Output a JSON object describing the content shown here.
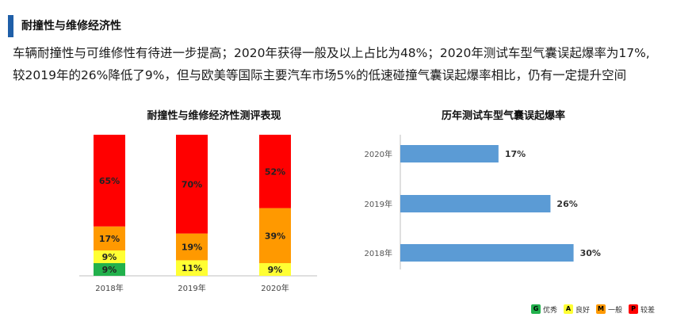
{
  "section": {
    "title": "耐撞性与维修经济性"
  },
  "summary": {
    "line1": "车辆耐撞性与可维修性有待进一步提高；2020年获得一般及以上占比为48%；2020年测试车型气囊误起爆率为17%,",
    "line2": "较2019年的26%降低了9%，但与欧美等国际主要汽车市场5%的低速碰撞气囊误起爆率相比，仍有一定提升空间"
  },
  "legend": [
    {
      "letter": "G",
      "label": "优秀",
      "color": "#22b14c"
    },
    {
      "letter": "A",
      "label": "良好",
      "color": "#ffff33"
    },
    {
      "letter": "M",
      "label": "一般",
      "color": "#ff9900"
    },
    {
      "letter": "P",
      "label": "较差",
      "color": "#ff0000"
    }
  ],
  "chart_data": [
    {
      "type": "bar",
      "stacked": true,
      "title": "耐撞性与维修经济性测评表现",
      "categories": [
        "2018年",
        "2019年",
        "2020年"
      ],
      "series": [
        {
          "name": "优秀",
          "values": [
            9,
            0,
            0
          ],
          "color": "#22b14c",
          "labels": [
            "9%",
            "",
            ""
          ]
        },
        {
          "name": "良好",
          "values": [
            9,
            11,
            9
          ],
          "color": "#ffff33",
          "labels": [
            "9%",
            "11%",
            "9%"
          ]
        },
        {
          "name": "一般",
          "values": [
            17,
            19,
            39
          ],
          "color": "#ff9900",
          "labels": [
            "17%",
            "19%",
            "39%"
          ]
        },
        {
          "name": "较差",
          "values": [
            65,
            70,
            52
          ],
          "color": "#ff0000",
          "labels": [
            "65%",
            "70%",
            "52%"
          ]
        }
      ],
      "ylim": [
        0,
        100
      ]
    },
    {
      "type": "bar",
      "orientation": "horizontal",
      "title": "历年测试车型气囊误起爆率",
      "categories": [
        "2020年",
        "2019年",
        "2018年"
      ],
      "values": [
        17,
        26,
        30
      ],
      "labels": [
        "17%",
        "26%",
        "30%"
      ],
      "color": "#5b9bd5",
      "xlim": [
        0,
        35
      ]
    }
  ]
}
